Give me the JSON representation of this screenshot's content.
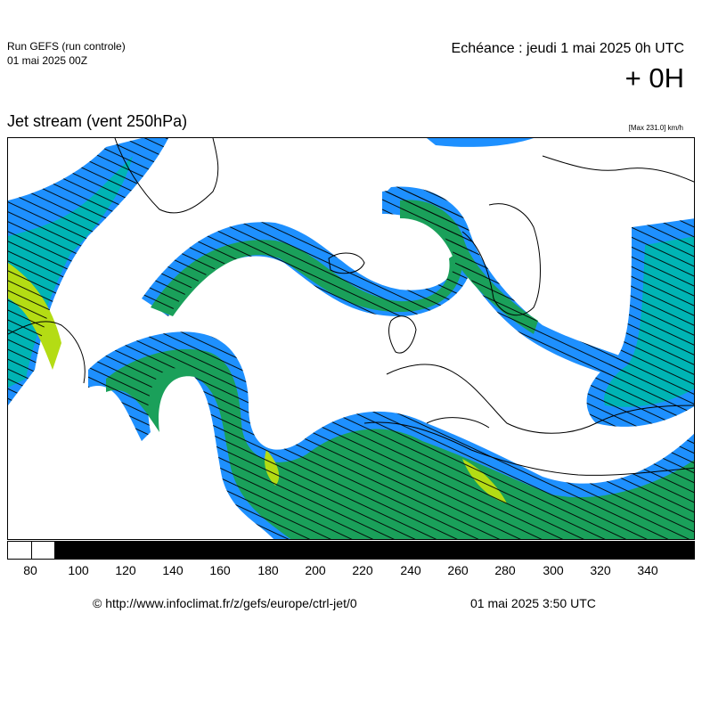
{
  "header": {
    "run_title": "Run GEFS (run controle)",
    "run_date": "01 mai 2025 00Z",
    "echeance": "Echéance : jeudi 1 mai 2025 0h UTC",
    "lead_time": "+ 0H"
  },
  "map": {
    "title": "Jet stream (vent 250hPa)",
    "max_note": "[Max 231.0] km/h",
    "colors": {
      "low": "#1e90ff",
      "mid_low": "#00b4b4",
      "mid": "#1aa05a",
      "high": "#b4dc14",
      "land_outline": "#000000",
      "arrow": "#000000"
    }
  },
  "colorbar": {
    "segments": [
      {
        "color": "#ffffff",
        "label": "80"
      },
      {
        "color": "#ffffff",
        "label": ""
      },
      {
        "color": "#000000",
        "label": "100"
      },
      {
        "color": "#000000",
        "label": "120"
      },
      {
        "color": "#000000",
        "label": "140"
      },
      {
        "color": "#000000",
        "label": "160"
      },
      {
        "color": "#000000",
        "label": "180"
      },
      {
        "color": "#000000",
        "label": "200"
      },
      {
        "color": "#000000",
        "label": "220"
      },
      {
        "color": "#000000",
        "label": "240"
      },
      {
        "color": "#000000",
        "label": "260"
      },
      {
        "color": "#000000",
        "label": "280"
      },
      {
        "color": "#000000",
        "label": "300"
      },
      {
        "color": "#000000",
        "label": "320"
      },
      {
        "color": "#000000",
        "label": "340"
      }
    ],
    "tick_labels": [
      "80",
      "100",
      "120",
      "140",
      "160",
      "180",
      "200",
      "220",
      "240",
      "260",
      "280",
      "300",
      "320",
      "340"
    ]
  },
  "footer": {
    "source": "© http://www.infoclimat.fr/z/gefs/europe/ctrl-jet/0",
    "generated": "01 mai 2025  3:50 UTC"
  }
}
